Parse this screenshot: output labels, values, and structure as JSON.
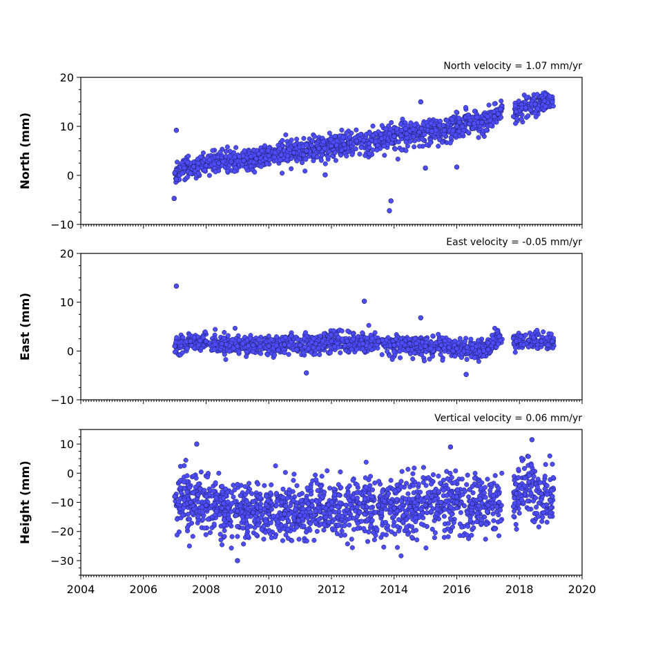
{
  "chart_data": [
    {
      "type": "scatter",
      "title": "North velocity = 1.07 mm/yr",
      "ylabel": "North (mm)",
      "xlabel": "",
      "xlim": [
        2004,
        2020
      ],
      "ylim": [
        -10,
        20
      ],
      "yticks": [
        -10,
        0,
        10,
        20
      ],
      "xticks": [
        2004,
        2006,
        2008,
        2010,
        2012,
        2014,
        2016,
        2018,
        2020
      ],
      "show_xtick_labels": false,
      "marker_color": "#4d4dff",
      "marker_edge": "#1a1a55",
      "x": [
        2007.0,
        2007.3,
        2007.6,
        2008.0,
        2008.4,
        2008.8,
        2009.2,
        2009.6,
        2010.0,
        2010.4,
        2010.8,
        2011.2,
        2011.6,
        2012.0,
        2012.4,
        2012.8,
        2013.2,
        2013.6,
        2014.0,
        2014.4,
        2014.8,
        2015.2,
        2015.6,
        2016.0,
        2016.4,
        2016.8,
        2017.2,
        2017.4,
        2017.9,
        2018.2,
        2018.5,
        2018.8,
        2019.05,
        2007.05,
        2006.98,
        2013.85,
        2013.9,
        2015.0,
        2014.85,
        2016.0,
        2011.8
      ],
      "y": [
        0.5,
        1.5,
        1.8,
        2.0,
        2.5,
        2.8,
        3.0,
        3.4,
        4.0,
        4.2,
        4.6,
        5.0,
        5.5,
        6.0,
        6.3,
        7.0,
        6.5,
        7.5,
        8.0,
        8.5,
        8.8,
        9.0,
        9.2,
        10.0,
        10.5,
        10.8,
        12.0,
        13.5,
        13.0,
        13.8,
        14.5,
        15.2,
        15.0,
        9.2,
        -4.7,
        -7.2,
        -5.2,
        1.5,
        15.0,
        1.7,
        0.1
      ],
      "noise": 1.2,
      "n_dense": 1400
    },
    {
      "type": "scatter",
      "title": "East velocity = -0.05 mm/yr",
      "ylabel": "East (mm)",
      "xlabel": "",
      "xlim": [
        2004,
        2020
      ],
      "ylim": [
        -10,
        20
      ],
      "yticks": [
        -10,
        0,
        10,
        20
      ],
      "xticks": [
        2004,
        2006,
        2008,
        2010,
        2012,
        2014,
        2016,
        2018,
        2020
      ],
      "show_xtick_labels": false,
      "marker_color": "#4d4dff",
      "marker_edge": "#1a1a55",
      "x": [
        2007.0,
        2007.5,
        2008.0,
        2008.5,
        2009.0,
        2009.5,
        2010.0,
        2010.5,
        2011.0,
        2011.5,
        2012.0,
        2012.5,
        2013.0,
        2013.5,
        2014.0,
        2014.5,
        2015.0,
        2015.5,
        2016.0,
        2016.5,
        2017.0,
        2017.35,
        2017.9,
        2018.3,
        2018.7,
        2019.05,
        2007.05,
        2013.05,
        2014.85,
        2016.3,
        2011.2
      ],
      "y": [
        1.0,
        2.0,
        2.0,
        1.5,
        1.0,
        1.2,
        1.0,
        1.3,
        1.2,
        1.5,
        2.0,
        2.0,
        1.5,
        2.0,
        1.2,
        1.5,
        1.0,
        1.2,
        0.5,
        0.5,
        0.3,
        3.0,
        2.0,
        2.2,
        2.0,
        2.0,
        13.3,
        10.2,
        6.8,
        -4.8,
        -4.5
      ],
      "noise": 1.0,
      "n_dense": 1400
    },
    {
      "type": "scatter",
      "title": "Vertical velocity = 0.06 mm/yr",
      "ylabel": "Height (mm)",
      "xlabel": "",
      "xlim": [
        2004,
        2020
      ],
      "ylim": [
        -35,
        15
      ],
      "yticks": [
        -30,
        -20,
        -10,
        0,
        10
      ],
      "xticks": [
        2004,
        2006,
        2008,
        2010,
        2012,
        2014,
        2016,
        2018,
        2020
      ],
      "show_xtick_labels": true,
      "marker_color": "#4d4dff",
      "marker_edge": "#1a1a55",
      "x": [
        2007.0,
        2007.5,
        2008.0,
        2008.5,
        2009.0,
        2009.5,
        2010.0,
        2010.5,
        2011.0,
        2011.5,
        2012.0,
        2012.5,
        2013.0,
        2013.5,
        2014.0,
        2014.5,
        2015.0,
        2015.5,
        2016.0,
        2016.5,
        2017.0,
        2017.35,
        2017.9,
        2018.3,
        2018.7,
        2019.05,
        2007.7,
        2009.0,
        2018.4,
        2015.8
      ],
      "y": [
        -8.0,
        -10.0,
        -11.0,
        -12.0,
        -13.0,
        -13.5,
        -14.0,
        -14.0,
        -14.5,
        -13.0,
        -12.0,
        -12.5,
        -11.5,
        -11.0,
        -12.0,
        -11.5,
        -11.0,
        -10.0,
        -10.0,
        -10.5,
        -11.0,
        -10.0,
        -7.0,
        -3.0,
        -7.0,
        -8.0,
        10.0,
        -30.0,
        11.5,
        9.0
      ],
      "noise": 5.0,
      "n_dense": 1600
    }
  ]
}
